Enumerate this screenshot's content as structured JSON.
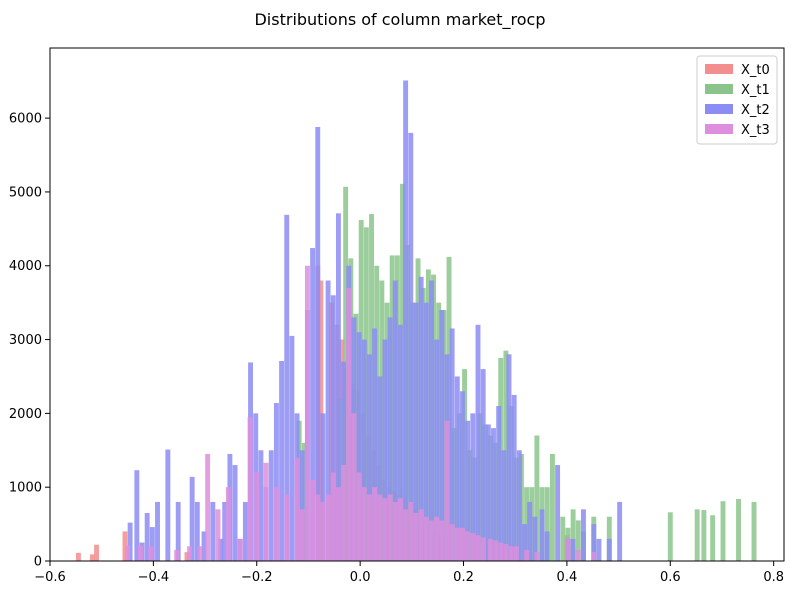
{
  "chart_data": {
    "type": "bar",
    "title": "Distributions of column market_rocp",
    "xlabel": "",
    "ylabel": "",
    "xlim": [
      -0.6,
      0.82
    ],
    "ylim": [
      0,
      6950
    ],
    "xticks": [
      -0.6,
      -0.4,
      -0.2,
      0.0,
      0.2,
      0.4,
      0.6,
      0.8
    ],
    "xtick_labels": [
      "−0.6",
      "−0.4",
      "−0.2",
      "0.0",
      "0.2",
      "0.4",
      "0.6",
      "0.8"
    ],
    "yticks": [
      0,
      1000,
      2000,
      3000,
      4000,
      5000,
      6000
    ],
    "ytick_labels": [
      "0",
      "1000",
      "2000",
      "3000",
      "4000",
      "5000",
      "6000"
    ],
    "legend_position": "top-right",
    "grid": false,
    "series": [
      {
        "name": "X_t0",
        "color": "#f28e8e",
        "bins": [
          [
            -0.545,
            110
          ],
          [
            -0.518,
            90
          ],
          [
            -0.51,
            220
          ],
          [
            -0.455,
            400
          ],
          [
            -0.335,
            120
          ],
          [
            -0.082,
            4000
          ],
          [
            -0.076,
            3800
          ],
          [
            -0.055,
            3500
          ],
          [
            -0.045,
            3200
          ],
          [
            -0.035,
            3000
          ],
          [
            -0.025,
            2600
          ],
          [
            -0.015,
            2400
          ],
          [
            -0.005,
            2300
          ],
          [
            0.005,
            2000
          ],
          [
            0.015,
            1700
          ],
          [
            0.025,
            1500
          ],
          [
            0.035,
            1300
          ],
          [
            0.045,
            1100
          ],
          [
            0.055,
            1000
          ],
          [
            0.065,
            950
          ],
          [
            0.075,
            900
          ],
          [
            0.085,
            850
          ],
          [
            0.095,
            800
          ],
          [
            0.105,
            700
          ],
          [
            0.115,
            650
          ],
          [
            0.125,
            550
          ],
          [
            0.135,
            500
          ],
          [
            0.145,
            420
          ],
          [
            0.155,
            380
          ],
          [
            0.165,
            330
          ],
          [
            0.178,
            500
          ],
          [
            0.4,
            350
          ]
        ]
      },
      {
        "name": "X_t1",
        "color": "#8bc48b",
        "bins": [
          [
            -0.118,
            1900
          ],
          [
            -0.108,
            1600
          ],
          [
            -0.038,
            2200
          ],
          [
            -0.028,
            5070
          ],
          [
            -0.018,
            4100
          ],
          [
            -0.008,
            3350
          ],
          [
            0.002,
            4620
          ],
          [
            0.012,
            4520
          ],
          [
            0.022,
            4700
          ],
          [
            0.032,
            4000
          ],
          [
            0.042,
            3800
          ],
          [
            0.052,
            3500
          ],
          [
            0.062,
            4140
          ],
          [
            0.072,
            4140
          ],
          [
            0.082,
            5110
          ],
          [
            0.092,
            4280
          ],
          [
            0.102,
            3500
          ],
          [
            0.112,
            4100
          ],
          [
            0.122,
            3700
          ],
          [
            0.132,
            3950
          ],
          [
            0.142,
            3880
          ],
          [
            0.152,
            3500
          ],
          [
            0.162,
            3400
          ],
          [
            0.172,
            4120
          ],
          [
            0.182,
            1800
          ],
          [
            0.192,
            2000
          ],
          [
            0.202,
            2600
          ],
          [
            0.212,
            1500
          ],
          [
            0.222,
            1400
          ],
          [
            0.232,
            2000
          ],
          [
            0.242,
            1850
          ],
          [
            0.252,
            1700
          ],
          [
            0.262,
            1600
          ],
          [
            0.272,
            2750
          ],
          [
            0.282,
            2850
          ],
          [
            0.292,
            2100
          ],
          [
            0.302,
            1400
          ],
          [
            0.312,
            1450
          ],
          [
            0.322,
            1000
          ],
          [
            0.332,
            1000
          ],
          [
            0.342,
            1700
          ],
          [
            0.352,
            1000
          ],
          [
            0.362,
            1000
          ],
          [
            0.372,
            1450
          ],
          [
            0.392,
            600
          ],
          [
            0.402,
            450
          ],
          [
            0.412,
            700
          ],
          [
            0.422,
            550
          ],
          [
            0.432,
            400
          ],
          [
            0.452,
            600
          ],
          [
            0.482,
            600
          ],
          [
            0.6,
            660
          ],
          [
            0.652,
            700
          ],
          [
            0.665,
            690
          ],
          [
            0.682,
            620
          ],
          [
            0.702,
            810
          ],
          [
            0.732,
            840
          ],
          [
            0.762,
            800
          ]
        ]
      },
      {
        "name": "X_t2",
        "color": "#8c8cf5",
        "bins": [
          [
            -0.445,
            520
          ],
          [
            -0.432,
            1230
          ],
          [
            -0.422,
            250
          ],
          [
            -0.412,
            650
          ],
          [
            -0.402,
            460
          ],
          [
            -0.392,
            800
          ],
          [
            -0.372,
            1510
          ],
          [
            -0.352,
            800
          ],
          [
            -0.325,
            1140
          ],
          [
            -0.315,
            800
          ],
          [
            -0.302,
            400
          ],
          [
            -0.285,
            800
          ],
          [
            -0.27,
            300
          ],
          [
            -0.262,
            800
          ],
          [
            -0.252,
            1450
          ],
          [
            -0.242,
            1300
          ],
          [
            -0.232,
            300
          ],
          [
            -0.222,
            800
          ],
          [
            -0.212,
            2690
          ],
          [
            -0.202,
            2000
          ],
          [
            -0.192,
            1500
          ],
          [
            -0.182,
            1000
          ],
          [
            -0.172,
            1500
          ],
          [
            -0.162,
            2140
          ],
          [
            -0.152,
            2710
          ],
          [
            -0.142,
            4690
          ],
          [
            -0.132,
            3050
          ],
          [
            -0.122,
            2000
          ],
          [
            -0.112,
            1500
          ],
          [
            -0.102,
            3400
          ],
          [
            -0.092,
            4240
          ],
          [
            -0.082,
            5880
          ],
          [
            -0.072,
            2000
          ],
          [
            -0.062,
            3800
          ],
          [
            -0.052,
            3600
          ],
          [
            -0.042,
            4710
          ],
          [
            -0.032,
            2700
          ],
          [
            -0.022,
            4000
          ],
          [
            -0.012,
            3300
          ],
          [
            -0.002,
            3100
          ],
          [
            0.008,
            3000
          ],
          [
            0.018,
            2800
          ],
          [
            0.028,
            3150
          ],
          [
            0.038,
            2500
          ],
          [
            0.048,
            3000
          ],
          [
            0.058,
            3300
          ],
          [
            0.068,
            3800
          ],
          [
            0.078,
            3200
          ],
          [
            0.088,
            6510
          ],
          [
            0.098,
            5800
          ],
          [
            0.108,
            3500
          ],
          [
            0.118,
            3850
          ],
          [
            0.128,
            3500
          ],
          [
            0.138,
            3800
          ],
          [
            0.148,
            3000
          ],
          [
            0.158,
            3400
          ],
          [
            0.168,
            2800
          ],
          [
            0.178,
            3150
          ],
          [
            0.188,
            2500
          ],
          [
            0.198,
            2300
          ],
          [
            0.208,
            1900
          ],
          [
            0.218,
            2000
          ],
          [
            0.228,
            3200
          ],
          [
            0.238,
            2600
          ],
          [
            0.248,
            1850
          ],
          [
            0.258,
            1800
          ],
          [
            0.268,
            2100
          ],
          [
            0.278,
            1500
          ],
          [
            0.288,
            2800
          ],
          [
            0.298,
            2250
          ],
          [
            0.308,
            1500
          ],
          [
            0.318,
            500
          ],
          [
            0.328,
            800
          ],
          [
            0.338,
            600
          ],
          [
            0.352,
            700
          ],
          [
            0.362,
            400
          ],
          [
            0.382,
            1300
          ],
          [
            0.402,
            300
          ],
          [
            0.412,
            300
          ],
          [
            0.432,
            700
          ],
          [
            0.452,
            500
          ],
          [
            0.462,
            300
          ],
          [
            0.482,
            300
          ],
          [
            0.502,
            800
          ]
        ]
      },
      {
        "name": "X_t3",
        "color": "#dd8fdd",
        "bins": [
          [
            -0.45,
            210
          ],
          [
            -0.425,
            210
          ],
          [
            -0.405,
            200
          ],
          [
            -0.355,
            150
          ],
          [
            -0.33,
            200
          ],
          [
            -0.31,
            200
          ],
          [
            -0.295,
            1450
          ],
          [
            -0.275,
            700
          ],
          [
            -0.255,
            1000
          ],
          [
            -0.232,
            300
          ],
          [
            -0.213,
            1950
          ],
          [
            -0.2,
            1200
          ],
          [
            -0.182,
            1330
          ],
          [
            -0.162,
            1000
          ],
          [
            -0.142,
            900
          ],
          [
            -0.122,
            1400
          ],
          [
            -0.112,
            700
          ],
          [
            -0.102,
            4000
          ],
          [
            -0.092,
            1100
          ],
          [
            -0.082,
            900
          ],
          [
            -0.072,
            800
          ],
          [
            -0.062,
            900
          ],
          [
            -0.052,
            1200
          ],
          [
            -0.042,
            1000
          ],
          [
            -0.032,
            1300
          ],
          [
            -0.022,
            3700
          ],
          [
            -0.012,
            2000
          ],
          [
            -0.002,
            1200
          ],
          [
            0.008,
            1000
          ],
          [
            0.018,
            900
          ],
          [
            0.028,
            1000
          ],
          [
            0.038,
            900
          ],
          [
            0.048,
            850
          ],
          [
            0.058,
            900
          ],
          [
            0.068,
            800
          ],
          [
            0.078,
            850
          ],
          [
            0.088,
            700
          ],
          [
            0.098,
            800
          ],
          [
            0.108,
            650
          ],
          [
            0.118,
            700
          ],
          [
            0.128,
            600
          ],
          [
            0.138,
            550
          ],
          [
            0.148,
            600
          ],
          [
            0.158,
            550
          ],
          [
            0.168,
            1900
          ],
          [
            0.178,
            500
          ],
          [
            0.188,
            450
          ],
          [
            0.198,
            450
          ],
          [
            0.208,
            400
          ],
          [
            0.218,
            380
          ],
          [
            0.228,
            350
          ],
          [
            0.238,
            320
          ],
          [
            0.252,
            300
          ],
          [
            0.262,
            280
          ],
          [
            0.272,
            250
          ],
          [
            0.282,
            230
          ],
          [
            0.292,
            200
          ],
          [
            0.302,
            200
          ],
          [
            0.322,
            150
          ],
          [
            0.342,
            120
          ],
          [
            0.402,
            300
          ],
          [
            0.422,
            150
          ],
          [
            0.452,
            120
          ]
        ]
      }
    ]
  }
}
